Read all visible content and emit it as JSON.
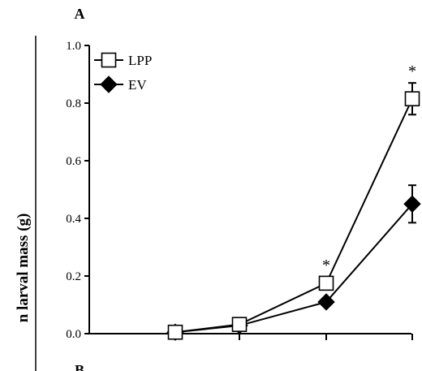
{
  "panel_labels": {
    "top": "A",
    "bottom": "B"
  },
  "chart_data": {
    "type": "line",
    "title": "",
    "xlabel": "",
    "ylabel": "n larval mass (g)",
    "x": [
      1,
      2,
      3,
      4
    ],
    "ylim": [
      0.0,
      1.0
    ],
    "yticks": [
      "0.0",
      "0.2",
      "0.4",
      "0.6",
      "0.8",
      "1.0"
    ],
    "xtick_labels": [
      "",
      "",
      "",
      ""
    ],
    "grid": false,
    "legend_position": "top-left",
    "significance_marker": "*",
    "series": [
      {
        "name": "LPP",
        "marker": "open-square",
        "color": "#000000",
        "values": [
          0.005,
          0.032,
          0.175,
          0.815
        ],
        "errors": [
          0.0,
          0.0,
          0.0,
          0.055
        ],
        "significant": [
          false,
          false,
          true,
          true
        ]
      },
      {
        "name": "EV",
        "marker": "filled-diamond",
        "color": "#000000",
        "values": [
          0.005,
          0.028,
          0.11,
          0.45
        ],
        "errors": [
          0.0,
          0.0,
          0.0,
          0.065
        ],
        "significant": [
          false,
          false,
          false,
          false
        ]
      }
    ]
  }
}
